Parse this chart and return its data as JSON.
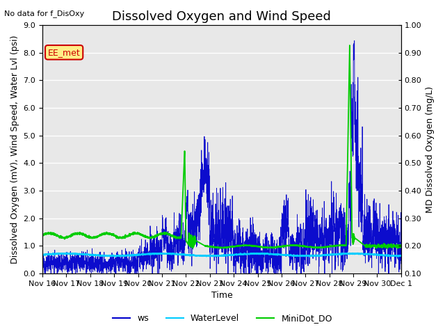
{
  "title": "Dissolved Oxygen and Wind Speed",
  "no_data_text": "No data for f_DisOxy",
  "xlabel": "Time",
  "ylabel_left": "Dissolved Oxygen (mV), Wind Speed, Water Lvl (psi)",
  "ylabel_right": "MD Dissolved Oxygen (mg/L)",
  "ylim_left": [
    0.0,
    9.0
  ],
  "ylim_right": [
    0.1,
    1.0
  ],
  "xtick_labels": [
    "Nov 16",
    "Nov 17",
    "Nov 18",
    "Nov 19",
    "Nov 20",
    "Nov 21",
    "Nov 22",
    "Nov 23",
    "Nov 24",
    "Nov 25",
    "Nov 26",
    "Nov 27",
    "Nov 28",
    "Nov 29",
    "Nov 30",
    "Dec 1"
  ],
  "legend_labels": [
    "ws",
    "WaterLevel",
    "MiniDot_DO"
  ],
  "ws_color": "#0000cc",
  "waterlevel_color": "#00ccff",
  "minidot_color": "#00cc00",
  "annotation_box_text": "EE_met",
  "annotation_box_color": "#ffee88",
  "annotation_box_border": "#cc0000",
  "background_color": "#e8e8e8",
  "grid_color": "#ffffff",
  "title_fontsize": 13,
  "label_fontsize": 9,
  "tick_fontsize": 8,
  "yticks_left": [
    0.0,
    1.0,
    2.0,
    3.0,
    4.0,
    5.0,
    6.0,
    7.0,
    8.0,
    9.0
  ],
  "yticks_right": [
    0.1,
    0.2,
    0.3,
    0.4,
    0.5,
    0.6,
    0.7,
    0.8,
    0.9,
    1.0
  ]
}
